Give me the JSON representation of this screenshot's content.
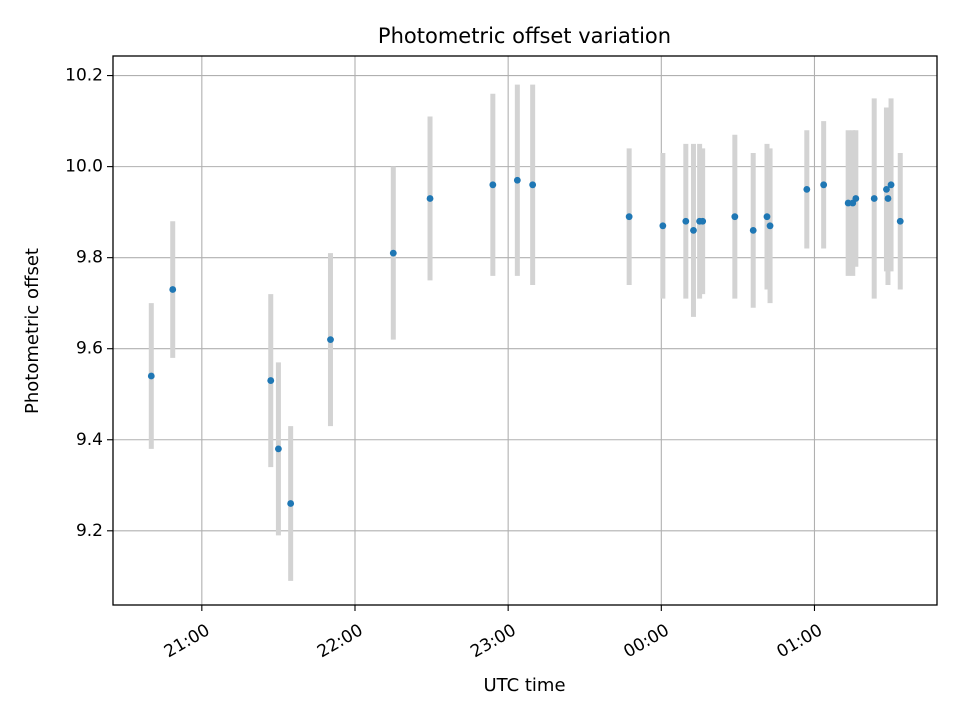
{
  "chart_data": {
    "type": "scatter",
    "title": "Photometric offset variation",
    "xlabel": "UTC time",
    "ylabel": "Photometric offset",
    "x_unit": "hours since 21:00 UTC",
    "xlim": [
      -0.58,
      4.8
    ],
    "ylim": [
      9.037,
      10.243
    ],
    "grid": true,
    "colors": {
      "marker": "#1f77b4",
      "errorbar": "#d3d3d3",
      "grid": "#b0b0b0",
      "frame": "#000000"
    },
    "x_ticks": [
      {
        "value": 0,
        "label": "21:00"
      },
      {
        "value": 1,
        "label": "22:00"
      },
      {
        "value": 2,
        "label": "23:00"
      },
      {
        "value": 3,
        "label": "00:00"
      },
      {
        "value": 4,
        "label": "01:00"
      }
    ],
    "y_ticks": [
      {
        "value": 9.2,
        "label": "9.2"
      },
      {
        "value": 9.4,
        "label": "9.4"
      },
      {
        "value": 9.6,
        "label": "9.6"
      },
      {
        "value": 9.8,
        "label": "9.8"
      },
      {
        "value": 10.0,
        "label": "10.0"
      },
      {
        "value": 10.2,
        "label": "10.2"
      }
    ],
    "series": [
      {
        "name": "Photometric offset",
        "points": [
          {
            "x": -0.33,
            "y": 9.54,
            "err": 0.16
          },
          {
            "x": -0.19,
            "y": 9.73,
            "err": 0.15
          },
          {
            "x": 0.45,
            "y": 9.53,
            "err": 0.19
          },
          {
            "x": 0.5,
            "y": 9.38,
            "err": 0.19
          },
          {
            "x": 0.58,
            "y": 9.26,
            "err": 0.17
          },
          {
            "x": 0.84,
            "y": 9.62,
            "err": 0.19
          },
          {
            "x": 1.25,
            "y": 9.81,
            "err": 0.19
          },
          {
            "x": 1.49,
            "y": 9.93,
            "err": 0.18
          },
          {
            "x": 1.9,
            "y": 9.96,
            "err": 0.2
          },
          {
            "x": 2.06,
            "y": 9.97,
            "err": 0.21
          },
          {
            "x": 2.16,
            "y": 9.96,
            "err": 0.22
          },
          {
            "x": 2.79,
            "y": 9.89,
            "err": 0.15
          },
          {
            "x": 3.01,
            "y": 9.87,
            "err": 0.16
          },
          {
            "x": 3.16,
            "y": 9.88,
            "err": 0.17
          },
          {
            "x": 3.21,
            "y": 9.86,
            "err": 0.19
          },
          {
            "x": 3.25,
            "y": 9.88,
            "err": 0.17
          },
          {
            "x": 3.27,
            "y": 9.88,
            "err": 0.16
          },
          {
            "x": 3.48,
            "y": 9.89,
            "err": 0.18
          },
          {
            "x": 3.6,
            "y": 9.86,
            "err": 0.17
          },
          {
            "x": 3.69,
            "y": 9.89,
            "err": 0.16
          },
          {
            "x": 3.71,
            "y": 9.87,
            "err": 0.17
          },
          {
            "x": 3.95,
            "y": 9.95,
            "err": 0.13
          },
          {
            "x": 4.06,
            "y": 9.96,
            "err": 0.14
          },
          {
            "x": 4.22,
            "y": 9.92,
            "err": 0.16
          },
          {
            "x": 4.25,
            "y": 9.92,
            "err": 0.16
          },
          {
            "x": 4.27,
            "y": 9.93,
            "err": 0.15
          },
          {
            "x": 4.39,
            "y": 9.93,
            "err": 0.22
          },
          {
            "x": 4.47,
            "y": 9.95,
            "err": 0.18
          },
          {
            "x": 4.48,
            "y": 9.93,
            "err": 0.19
          },
          {
            "x": 4.5,
            "y": 9.96,
            "err": 0.19
          },
          {
            "x": 4.56,
            "y": 9.88,
            "err": 0.15
          }
        ]
      }
    ]
  }
}
